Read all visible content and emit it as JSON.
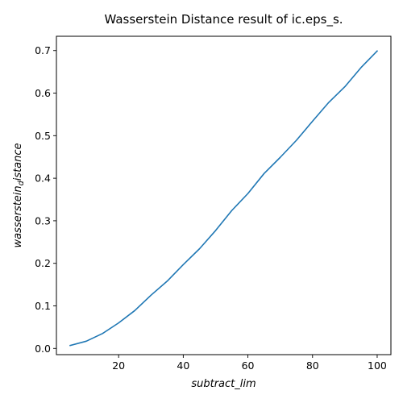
{
  "chart_data": {
    "type": "line",
    "title": "Wasserstein Distance result of ic.eps_s.",
    "xlabel": "subtract_lim",
    "ylabel_main": "wasserstein",
    "ylabel_sub": "d",
    "ylabel_rest": "istance",
    "xlim": [
      0.75,
      104.25
    ],
    "ylim": [
      -0.0146,
      0.7336
    ],
    "xticks": [
      20,
      40,
      60,
      80,
      100
    ],
    "xtick_labels": [
      "20",
      "40",
      "60",
      "80",
      "100"
    ],
    "yticks": [
      0.0,
      0.1,
      0.2,
      0.3,
      0.4,
      0.5,
      0.6,
      0.7
    ],
    "ytick_labels": [
      "0.0",
      "0.1",
      "0.2",
      "0.3",
      "0.4",
      "0.5",
      "0.6",
      "0.7"
    ],
    "grid": false,
    "series": [
      {
        "color": "#1f77b4",
        "x": [
          5,
          10,
          15,
          20,
          25,
          30,
          35,
          40,
          45,
          50,
          55,
          60,
          65,
          70,
          75,
          80,
          85,
          90,
          95,
          100
        ],
        "y": [
          0.007,
          0.017,
          0.035,
          0.06,
          0.089,
          0.125,
          0.158,
          0.197,
          0.234,
          0.277,
          0.324,
          0.364,
          0.411,
          0.449,
          0.489,
          0.534,
          0.578,
          0.615,
          0.66,
          0.699
        ]
      }
    ]
  }
}
